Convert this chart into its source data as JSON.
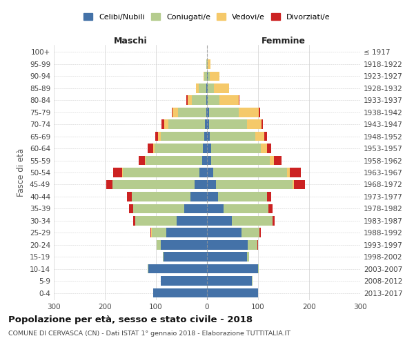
{
  "age_groups": [
    "0-4",
    "5-9",
    "10-14",
    "15-19",
    "20-24",
    "25-29",
    "30-34",
    "35-39",
    "40-44",
    "45-49",
    "50-54",
    "55-59",
    "60-64",
    "65-69",
    "70-74",
    "75-79",
    "80-84",
    "85-89",
    "90-94",
    "95-99",
    "100+"
  ],
  "birth_years": [
    "2013-2017",
    "2008-2012",
    "2003-2007",
    "1998-2002",
    "1993-1997",
    "1988-1992",
    "1983-1987",
    "1978-1982",
    "1973-1977",
    "1968-1972",
    "1963-1967",
    "1958-1962",
    "1953-1957",
    "1948-1952",
    "1943-1947",
    "1938-1942",
    "1933-1937",
    "1928-1932",
    "1923-1927",
    "1918-1922",
    "≤ 1917"
  ],
  "male": {
    "celibe": [
      105,
      90,
      115,
      85,
      90,
      80,
      60,
      45,
      32,
      25,
      15,
      10,
      8,
      6,
      4,
      2,
      2,
      1,
      0,
      0,
      0
    ],
    "coniugato": [
      0,
      1,
      1,
      2,
      8,
      28,
      80,
      100,
      115,
      160,
      150,
      110,
      95,
      85,
      72,
      55,
      28,
      15,
      5,
      1,
      0
    ],
    "vedovo": [
      0,
      0,
      0,
      0,
      0,
      1,
      0,
      0,
      0,
      0,
      1,
      2,
      3,
      5,
      8,
      10,
      8,
      5,
      2,
      0,
      0
    ],
    "divorziato": [
      0,
      0,
      0,
      0,
      1,
      2,
      5,
      8,
      10,
      12,
      18,
      12,
      10,
      5,
      5,
      2,
      2,
      0,
      0,
      0,
      0
    ]
  },
  "female": {
    "nubile": [
      100,
      88,
      100,
      78,
      80,
      68,
      48,
      32,
      22,
      18,
      12,
      8,
      8,
      6,
      4,
      4,
      2,
      1,
      1,
      0,
      0
    ],
    "coniugata": [
      0,
      1,
      2,
      4,
      18,
      35,
      80,
      88,
      95,
      150,
      145,
      115,
      98,
      88,
      75,
      58,
      22,
      12,
      5,
      2,
      0
    ],
    "vedova": [
      0,
      0,
      0,
      0,
      1,
      0,
      0,
      0,
      1,
      2,
      5,
      8,
      12,
      18,
      28,
      40,
      38,
      30,
      18,
      5,
      0
    ],
    "divorziata": [
      0,
      0,
      0,
      0,
      1,
      2,
      5,
      8,
      8,
      22,
      22,
      15,
      8,
      5,
      3,
      2,
      2,
      0,
      0,
      0,
      0
    ]
  },
  "colors": {
    "celibe": "#4472a8",
    "coniugato": "#b5cc8e",
    "vedovo": "#f5c96a",
    "divorziato": "#cc2222"
  },
  "title": "Popolazione per età, sesso e stato civile - 2018",
  "subtitle": "COMUNE DI CERVASCA (CN) - Dati ISTAT 1° gennaio 2018 - Elaborazione TUTTITALIA.IT",
  "xlabel_left": "Maschi",
  "xlabel_right": "Femmine",
  "ylabel_left": "Fasce di età",
  "xlim": 300,
  "bg_color": "#ffffff",
  "grid_color": "#d0d0d0",
  "legend_labels": [
    "Celibi/Nubili",
    "Coniugati/e",
    "Vedovi/e",
    "Divorziati/e"
  ]
}
